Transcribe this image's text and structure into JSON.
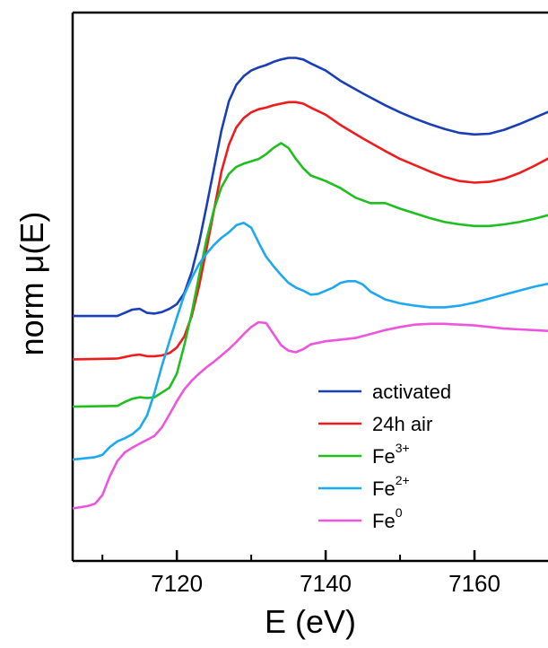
{
  "chart_data": {
    "type": "line",
    "xlabel": "E (eV)",
    "ylabel": "norm μ(E)",
    "xlim": [
      7106,
      7170
    ],
    "ylim": [
      0,
      1
    ],
    "x_ticks": [
      7120,
      7140,
      7160
    ],
    "x_tick_labels": [
      "7120",
      "7140",
      "7160"
    ],
    "x_minor_ticks": [
      7110,
      7130,
      7150,
      7170
    ],
    "y_ticks_shown": false,
    "grid": false,
    "legend_position": "lower-right",
    "series": [
      {
        "name": "activated",
        "legend_base": "activated",
        "legend_sup": "",
        "color": "#1a3fb5",
        "points": [
          [
            7106,
            0.4466
          ],
          [
            7112,
            0.4466
          ],
          [
            7113,
            0.4524
          ],
          [
            7114,
            0.4582
          ],
          [
            7115,
            0.4597
          ],
          [
            7116,
            0.4524
          ],
          [
            7117,
            0.451
          ],
          [
            7118,
            0.4539
          ],
          [
            7119,
            0.4597
          ],
          [
            7120,
            0.4683
          ],
          [
            7121,
            0.4884
          ],
          [
            7122,
            0.5273
          ],
          [
            7123,
            0.5806
          ],
          [
            7124,
            0.6468
          ],
          [
            7125,
            0.7158
          ],
          [
            7126,
            0.7849
          ],
          [
            7127,
            0.8381
          ],
          [
            7128,
            0.8683
          ],
          [
            7129,
            0.8842
          ],
          [
            7130,
            0.8942
          ],
          [
            7131,
            0.9
          ],
          [
            7132,
            0.9043
          ],
          [
            7133,
            0.9101
          ],
          [
            7134,
            0.9144
          ],
          [
            7135,
            0.9173
          ],
          [
            7136,
            0.9173
          ],
          [
            7137,
            0.9144
          ],
          [
            7138,
            0.9072
          ],
          [
            7140,
            0.8942
          ],
          [
            7142,
            0.8755
          ],
          [
            7145,
            0.8525
          ],
          [
            7148,
            0.8309
          ],
          [
            7150,
            0.818
          ],
          [
            7152,
            0.8065
          ],
          [
            7154,
            0.7964
          ],
          [
            7156,
            0.7878
          ],
          [
            7158,
            0.7806
          ],
          [
            7160,
            0.7777
          ],
          [
            7162,
            0.7791
          ],
          [
            7164,
            0.7863
          ],
          [
            7166,
            0.7964
          ],
          [
            7168,
            0.8079
          ],
          [
            7170,
            0.8194
          ]
        ]
      },
      {
        "name": "24h air",
        "legend_base": "24h air",
        "legend_sup": "",
        "color": "#ee1c1c",
        "points": [
          [
            7106,
            0.3676
          ],
          [
            7112,
            0.369
          ],
          [
            7113,
            0.3719
          ],
          [
            7114,
            0.3748
          ],
          [
            7115,
            0.3763
          ],
          [
            7116,
            0.3734
          ],
          [
            7117,
            0.3734
          ],
          [
            7118,
            0.3748
          ],
          [
            7119,
            0.3791
          ],
          [
            7120,
            0.3892
          ],
          [
            7121,
            0.4094
          ],
          [
            7122,
            0.4468
          ],
          [
            7123,
            0.5015
          ],
          [
            7124,
            0.5691
          ],
          [
            7125,
            0.6396
          ],
          [
            7126,
            0.7101
          ],
          [
            7127,
            0.759
          ],
          [
            7128,
            0.7907
          ],
          [
            7129,
            0.8079
          ],
          [
            7130,
            0.818
          ],
          [
            7131,
            0.8237
          ],
          [
            7132,
            0.8266
          ],
          [
            7133,
            0.8309
          ],
          [
            7134,
            0.8338
          ],
          [
            7135,
            0.8367
          ],
          [
            7136,
            0.8367
          ],
          [
            7137,
            0.8338
          ],
          [
            7138,
            0.8266
          ],
          [
            7140,
            0.8137
          ],
          [
            7142,
            0.795
          ],
          [
            7145,
            0.7705
          ],
          [
            7148,
            0.7475
          ],
          [
            7150,
            0.7331
          ],
          [
            7152,
            0.7216
          ],
          [
            7154,
            0.7101
          ],
          [
            7156,
            0.7
          ],
          [
            7158,
            0.6928
          ],
          [
            7160,
            0.6899
          ],
          [
            7162,
            0.6914
          ],
          [
            7164,
            0.6971
          ],
          [
            7166,
            0.7072
          ],
          [
            7168,
            0.7201
          ],
          [
            7170,
            0.7345
          ]
        ]
      },
      {
        "name": "Fe3+",
        "legend_base": "Fe",
        "legend_sup": "3+",
        "color": "#1fbf1f",
        "points": [
          [
            7106,
            0.2813
          ],
          [
            7112,
            0.2827
          ],
          [
            7113,
            0.2899
          ],
          [
            7114,
            0.2957
          ],
          [
            7115,
            0.2986
          ],
          [
            7116,
            0.2971
          ],
          [
            7117,
            0.2986
          ],
          [
            7118,
            0.3072
          ],
          [
            7119,
            0.3158
          ],
          [
            7120,
            0.3417
          ],
          [
            7121,
            0.3935
          ],
          [
            7122,
            0.4525
          ],
          [
            7123,
            0.5201
          ],
          [
            7124,
            0.5863
          ],
          [
            7125,
            0.641
          ],
          [
            7126,
            0.6813
          ],
          [
            7127,
            0.7058
          ],
          [
            7128,
            0.7187
          ],
          [
            7129,
            0.7245
          ],
          [
            7130,
            0.7288
          ],
          [
            7131,
            0.7331
          ],
          [
            7132,
            0.7417
          ],
          [
            7133,
            0.7532
          ],
          [
            7134,
            0.7619
          ],
          [
            7135,
            0.7532
          ],
          [
            7136,
            0.7331
          ],
          [
            7137,
            0.7158
          ],
          [
            7138,
            0.7029
          ],
          [
            7140,
            0.6928
          ],
          [
            7142,
            0.6799
          ],
          [
            7144,
            0.6626
          ],
          [
            7146,
            0.6525
          ],
          [
            7148,
            0.6525
          ],
          [
            7150,
            0.6424
          ],
          [
            7152,
            0.6338
          ],
          [
            7154,
            0.6252
          ],
          [
            7156,
            0.618
          ],
          [
            7158,
            0.6137
          ],
          [
            7160,
            0.6108
          ],
          [
            7162,
            0.6108
          ],
          [
            7164,
            0.6137
          ],
          [
            7166,
            0.618
          ],
          [
            7168,
            0.6237
          ],
          [
            7170,
            0.6309
          ]
        ]
      },
      {
        "name": "Fe2+",
        "legend_base": "Fe",
        "legend_sup": "2+",
        "color": "#1ea8f0",
        "points": [
          [
            7106,
            0.1848
          ],
          [
            7109,
            0.1892
          ],
          [
            7110,
            0.1935
          ],
          [
            7111,
            0.2079
          ],
          [
            7112,
            0.218
          ],
          [
            7113,
            0.2237
          ],
          [
            7114,
            0.2309
          ],
          [
            7115,
            0.2424
          ],
          [
            7116,
            0.2655
          ],
          [
            7117,
            0.3072
          ],
          [
            7118,
            0.3561
          ],
          [
            7119,
            0.4007
          ],
          [
            7120,
            0.4439
          ],
          [
            7121,
            0.4856
          ],
          [
            7122,
            0.5158
          ],
          [
            7123,
            0.5417
          ],
          [
            7124,
            0.5604
          ],
          [
            7125,
            0.5763
          ],
          [
            7126,
            0.5892
          ],
          [
            7127,
            0.5993
          ],
          [
            7128,
            0.6122
          ],
          [
            7129,
            0.6166
          ],
          [
            7130,
            0.6079
          ],
          [
            7131,
            0.5806
          ],
          [
            7132,
            0.5547
          ],
          [
            7133,
            0.5374
          ],
          [
            7134,
            0.5216
          ],
          [
            7135,
            0.5072
          ],
          [
            7136,
            0.4986
          ],
          [
            7137,
            0.4928
          ],
          [
            7138,
            0.4856
          ],
          [
            7139,
            0.4871
          ],
          [
            7140,
            0.4928
          ],
          [
            7141,
            0.4986
          ],
          [
            7142,
            0.5072
          ],
          [
            7143,
            0.5101
          ],
          [
            7144,
            0.5101
          ],
          [
            7145,
            0.5043
          ],
          [
            7146,
            0.4914
          ],
          [
            7148,
            0.477
          ],
          [
            7150,
            0.4698
          ],
          [
            7152,
            0.4655
          ],
          [
            7154,
            0.4626
          ],
          [
            7156,
            0.4626
          ],
          [
            7158,
            0.4655
          ],
          [
            7160,
            0.4712
          ],
          [
            7162,
            0.4784
          ],
          [
            7164,
            0.4856
          ],
          [
            7166,
            0.4928
          ],
          [
            7168,
            0.5
          ],
          [
            7170,
            0.5058
          ]
        ]
      },
      {
        "name": "Fe0",
        "legend_base": "Fe",
        "legend_sup": "0",
        "color": "#ee55dd",
        "points": [
          [
            7106,
            0.0957
          ],
          [
            7108,
            0.1
          ],
          [
            7109,
            0.1043
          ],
          [
            7110,
            0.1201
          ],
          [
            7111,
            0.1546
          ],
          [
            7112,
            0.182
          ],
          [
            7113,
            0.1978
          ],
          [
            7114,
            0.2065
          ],
          [
            7115,
            0.2137
          ],
          [
            7116,
            0.2209
          ],
          [
            7117,
            0.2281
          ],
          [
            7118,
            0.2439
          ],
          [
            7119,
            0.2669
          ],
          [
            7120,
            0.2914
          ],
          [
            7121,
            0.3129
          ],
          [
            7122,
            0.3288
          ],
          [
            7123,
            0.3417
          ],
          [
            7124,
            0.3532
          ],
          [
            7125,
            0.3633
          ],
          [
            7126,
            0.3748
          ],
          [
            7127,
            0.3863
          ],
          [
            7128,
            0.3993
          ],
          [
            7129,
            0.4137
          ],
          [
            7130,
            0.4266
          ],
          [
            7131,
            0.4353
          ],
          [
            7132,
            0.4338
          ],
          [
            7133,
            0.4137
          ],
          [
            7134,
            0.3935
          ],
          [
            7135,
            0.3835
          ],
          [
            7136,
            0.3806
          ],
          [
            7137,
            0.3863
          ],
          [
            7138,
            0.395
          ],
          [
            7140,
            0.4007
          ],
          [
            7142,
            0.4036
          ],
          [
            7144,
            0.4065
          ],
          [
            7146,
            0.4137
          ],
          [
            7148,
            0.4209
          ],
          [
            7150,
            0.4266
          ],
          [
            7152,
            0.4309
          ],
          [
            7154,
            0.4324
          ],
          [
            7156,
            0.4324
          ],
          [
            7158,
            0.4309
          ],
          [
            7160,
            0.4295
          ],
          [
            7162,
            0.4266
          ],
          [
            7164,
            0.4237
          ],
          [
            7166,
            0.4223
          ],
          [
            7168,
            0.4209
          ],
          [
            7170,
            0.4194
          ]
        ]
      }
    ]
  }
}
